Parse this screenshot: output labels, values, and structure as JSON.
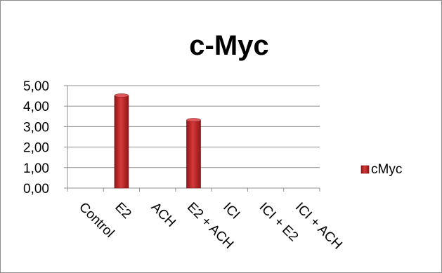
{
  "chart_data": {
    "type": "bar",
    "title": "c-Myc",
    "categories": [
      "Control",
      "E2",
      "ACH",
      "E2 + ACH",
      "ICI",
      "ICI + E2",
      "ICI + ACH"
    ],
    "series": [
      {
        "name": "cMyc",
        "values": [
          0,
          4.52,
          0,
          3.32,
          0,
          0,
          0
        ]
      }
    ],
    "y_ticks": [
      "0,00",
      "1,00",
      "2,00",
      "3,00",
      "4,00",
      "5,00"
    ],
    "ylim": [
      0,
      5
    ],
    "grid": true,
    "legend_position": "right",
    "colors": {
      "bar_fill": "#c0272d",
      "bar_dark": "#7a1010",
      "grid": "#8c8c8c",
      "axis": "#8c8c8c"
    }
  }
}
